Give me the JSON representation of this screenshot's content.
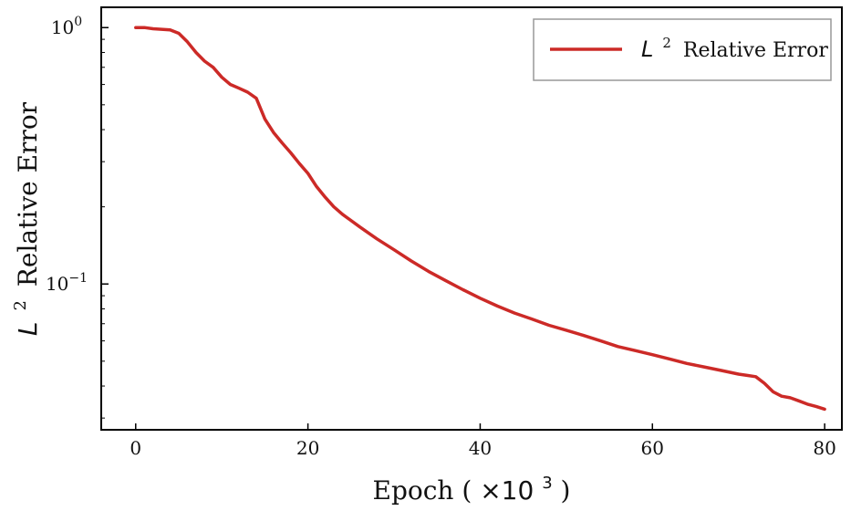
{
  "chart_data": {
    "type": "line",
    "title": "",
    "xlabel": {
      "prefix": "Epoch (",
      "mult": "×10",
      "exp": "3",
      "suffix": ")"
    },
    "ylabel": {
      "symbol": "L",
      "exp": "2",
      "rest": "Relative Error"
    },
    "xlim": [
      -4,
      82
    ],
    "ylim": [
      0.027,
      1.2
    ],
    "yscale": "log",
    "grid": false,
    "legend_position": "top-right",
    "xticks": [
      0,
      20,
      40,
      60,
      80
    ],
    "yticks": [
      {
        "value": 1,
        "base": "10",
        "exp": "0"
      },
      {
        "value": 0.1,
        "base": "10",
        "exp": "−1"
      }
    ],
    "line_color": "#cc2a27",
    "series": [
      {
        "name": {
          "symbol": "L",
          "exp": "2",
          "rest": "Relative Error"
        },
        "x": [
          0,
          1,
          2,
          3,
          4,
          5,
          6,
          7,
          8,
          9,
          10,
          11,
          12,
          13,
          14,
          15,
          16,
          17,
          18,
          19,
          20,
          21,
          22,
          23,
          24,
          26,
          28,
          30,
          32,
          34,
          36,
          38,
          40,
          42,
          44,
          46,
          48,
          50,
          52,
          54,
          56,
          58,
          60,
          62,
          64,
          66,
          68,
          70,
          71,
          72,
          73,
          74,
          75,
          76,
          77,
          78,
          79,
          80
        ],
        "y": [
          1.0,
          1.0,
          0.99,
          0.985,
          0.98,
          0.95,
          0.88,
          0.8,
          0.74,
          0.7,
          0.64,
          0.6,
          0.58,
          0.56,
          0.53,
          0.44,
          0.39,
          0.355,
          0.325,
          0.295,
          0.27,
          0.24,
          0.218,
          0.2,
          0.187,
          0.167,
          0.15,
          0.136,
          0.123,
          0.112,
          0.103,
          0.095,
          0.088,
          0.082,
          0.077,
          0.073,
          0.069,
          0.066,
          0.063,
          0.06,
          0.057,
          0.055,
          0.053,
          0.051,
          0.049,
          0.0475,
          0.046,
          0.0445,
          0.044,
          0.0435,
          0.041,
          0.038,
          0.0365,
          0.036,
          0.035,
          0.034,
          0.0333,
          0.0325
        ]
      }
    ]
  }
}
